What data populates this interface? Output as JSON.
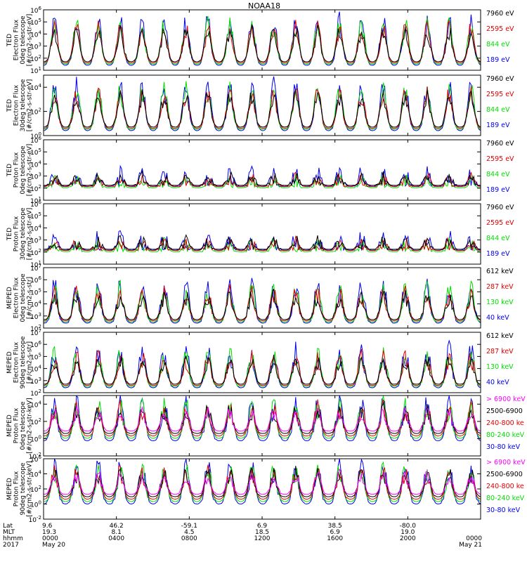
{
  "title": "NOAA18",
  "colors": {
    "black": "#000000",
    "red": "#e00000",
    "green": "#00dd00",
    "blue": "#0000ee",
    "magenta": "#ff00ff",
    "axis": "#000000"
  },
  "chart_data": {
    "type": "line",
    "title": "NOAA18",
    "x_start": "2017-05-20 00:00",
    "x_end": "2017-05-21 00:00",
    "panels": [
      {
        "ylabel": [
          "TED",
          "Electron Flux",
          "0deg telescope",
          "[#/cm2-s-str-eV]"
        ],
        "yticks": [
          "10^1",
          "10^2",
          "10^3",
          "10^4",
          "10^5",
          "10^6"
        ],
        "ylog": [
          1,
          6
        ],
        "legend": [
          {
            "text": "7960 eV",
            "color": "black"
          },
          {
            "text": "2595 eV",
            "color": "red"
          },
          {
            "text": "844 eV",
            "color": "green"
          },
          {
            "text": "189 eV",
            "color": "blue"
          }
        ]
      },
      {
        "ylabel": [
          "TED",
          "Electron Flux",
          "30deg telescope",
          "[#/cm2-s-str-eV]"
        ],
        "yticks": [
          "10^0",
          "10^2",
          "10^4"
        ],
        "ylog": [
          0,
          5
        ],
        "legend": [
          {
            "text": "7960 eV",
            "color": "black"
          },
          {
            "text": "2595 eV",
            "color": "red"
          },
          {
            "text": "844 eV",
            "color": "green"
          },
          {
            "text": "189 eV",
            "color": "blue"
          }
        ]
      },
      {
        "ylabel": [
          "TED",
          "Proton Flux",
          "0deg telescope",
          "[#/cm2-s-str-eV]"
        ],
        "yticks": [
          "10^1",
          "10^2",
          "10^3",
          "10^4",
          "10^5",
          "10^6"
        ],
        "ylog": [
          1,
          6
        ],
        "legend": [
          {
            "text": "7960 eV",
            "color": "black"
          },
          {
            "text": "2595 eV",
            "color": "red"
          },
          {
            "text": "844 eV",
            "color": "green"
          },
          {
            "text": "189 eV",
            "color": "blue"
          }
        ]
      },
      {
        "ylabel": [
          "TED",
          "Proton Flux",
          "30deg telescope",
          "[#/cm2-s-str-eV]"
        ],
        "yticks": [
          "10^1",
          "10^2",
          "10^3",
          "10^4",
          "10^5",
          "10^6"
        ],
        "ylog": [
          1,
          6
        ],
        "legend": [
          {
            "text": "7960 eV",
            "color": "black"
          },
          {
            "text": "2595 eV",
            "color": "red"
          },
          {
            "text": "844 eV",
            "color": "green"
          },
          {
            "text": "189 eV",
            "color": "blue"
          }
        ]
      },
      {
        "ylabel": [
          "MEPED",
          "Electron Flux",
          "0deg telescope",
          "[#/cm2-s-str]"
        ],
        "yticks": [
          "10^2",
          "10^3",
          "10^4",
          "10^5",
          "10^6",
          "10^7"
        ],
        "ylog": [
          2,
          7
        ],
        "legend": [
          {
            "text": "612 keV",
            "color": "black"
          },
          {
            "text": "287 keV",
            "color": "red"
          },
          {
            "text": "130 keV",
            "color": "green"
          },
          {
            "text": "40 keV",
            "color": "blue"
          }
        ]
      },
      {
        "ylabel": [
          "MEPED",
          "Electron Flux",
          "90deg telescope",
          "[#/cm2-s-str]"
        ],
        "yticks": [
          "10^2",
          "10^3",
          "10^4",
          "10^5",
          "10^6",
          "10^7"
        ],
        "ylog": [
          2,
          7
        ],
        "legend": [
          {
            "text": "612 keV",
            "color": "black"
          },
          {
            "text": "287 keV",
            "color": "red"
          },
          {
            "text": "130 keV",
            "color": "green"
          },
          {
            "text": "40 keV",
            "color": "blue"
          }
        ]
      },
      {
        "ylabel": [
          "MEPED",
          "Proton Flux",
          "0deg telescope",
          "[#/cm2-s-str-keV]"
        ],
        "yticks": [
          "10^-2",
          "10^0",
          "10^2",
          "10^4"
        ],
        "ylog": [
          -2,
          5
        ],
        "legend": [
          {
            "text": "> 6900 keV",
            "color": "magenta"
          },
          {
            "text": "2500-6900",
            "color": "black"
          },
          {
            "text": "240-800 ke",
            "color": "red"
          },
          {
            "text": "80-240 keV",
            "color": "green"
          },
          {
            "text": "30-80 keV",
            "color": "blue"
          }
        ]
      },
      {
        "ylabel": [
          "MEPED",
          "Proton Flux",
          "90deg telescope",
          "[#/cm2-s-str-keV]"
        ],
        "yticks": [
          "10^-2",
          "10^0",
          "10^2",
          "10^4",
          "10^6"
        ],
        "ylog": [
          -2,
          6
        ],
        "legend": [
          {
            "text": "> 6900 keV",
            "color": "magenta"
          },
          {
            "text": "2500-6900",
            "color": "black"
          },
          {
            "text": "240-800 ke",
            "color": "red"
          },
          {
            "text": "80-240 keV",
            "color": "green"
          },
          {
            "text": "30-80 keV",
            "color": "blue"
          }
        ]
      }
    ],
    "x_axis": {
      "row_labels": [
        "Lat",
        "MLT",
        "hhmm",
        "2017"
      ],
      "ticks": [
        {
          "lat": "9.6",
          "mlt": "19.3",
          "hhmm": "0000",
          "date": "May 20"
        },
        {
          "lat": "46.2",
          "mlt": "8.1",
          "hhmm": "0400",
          "date": ""
        },
        {
          "lat": "-59.1",
          "mlt": "4.5",
          "hhmm": "0800",
          "date": ""
        },
        {
          "lat": "6.9",
          "mlt": "18.5",
          "hhmm": "1200",
          "date": ""
        },
        {
          "lat": "38.5",
          "mlt": "6.9",
          "hhmm": "1600",
          "date": ""
        },
        {
          "lat": "-80.0",
          "mlt": "19.0",
          "hhmm": "2000",
          "date": ""
        },
        {
          "lat": "",
          "mlt": "",
          "hhmm": "0000",
          "date": "May 21"
        }
      ]
    }
  }
}
